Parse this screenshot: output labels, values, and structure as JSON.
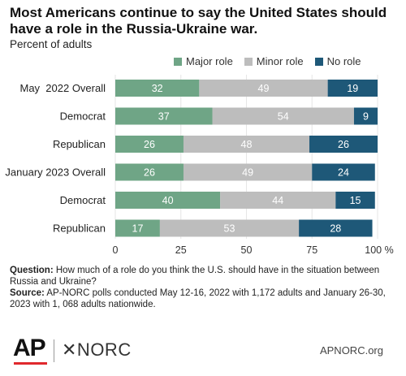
{
  "header": {
    "title": "Most Americans continue to say the United States should have a role in the Russia-Ukraine war.",
    "subtitle": "Percent of adults"
  },
  "colors": {
    "major": "#6fa586",
    "minor": "#bdbdbd",
    "none": "#1e5878"
  },
  "chart_data": {
    "type": "bar",
    "orientation": "horizontal",
    "stacked": true,
    "categories": [
      "May  2022 Overall",
      "Democrat",
      "Republican",
      "January 2023 Overall",
      "Democrat",
      "Republican"
    ],
    "series": [
      {
        "name": "Major role",
        "values": [
          32,
          37,
          26,
          26,
          40,
          17
        ]
      },
      {
        "name": "Minor role",
        "values": [
          49,
          54,
          48,
          49,
          44,
          53
        ]
      },
      {
        "name": "No role",
        "values": [
          19,
          9,
          26,
          24,
          15,
          28
        ]
      }
    ],
    "xlim": [
      0,
      100
    ],
    "xticks": [
      "0",
      "25",
      "50",
      "75",
      "100 %"
    ],
    "legend_position": "top"
  },
  "footnote": {
    "question_label": "Question:",
    "question_text": "How much of a role do you think the U.S. should have in the situation between Russia and Ukraine?",
    "source_label": "Source:",
    "source_text": "AP-NORC polls conducted May 12-16, 2022 with 1,172 adults and January 26-30, 2023 with 1, 068 adults nationwide."
  },
  "branding": {
    "ap_logo": "AP",
    "norc_logo": "✕NORC",
    "site": "APNORC.org"
  }
}
